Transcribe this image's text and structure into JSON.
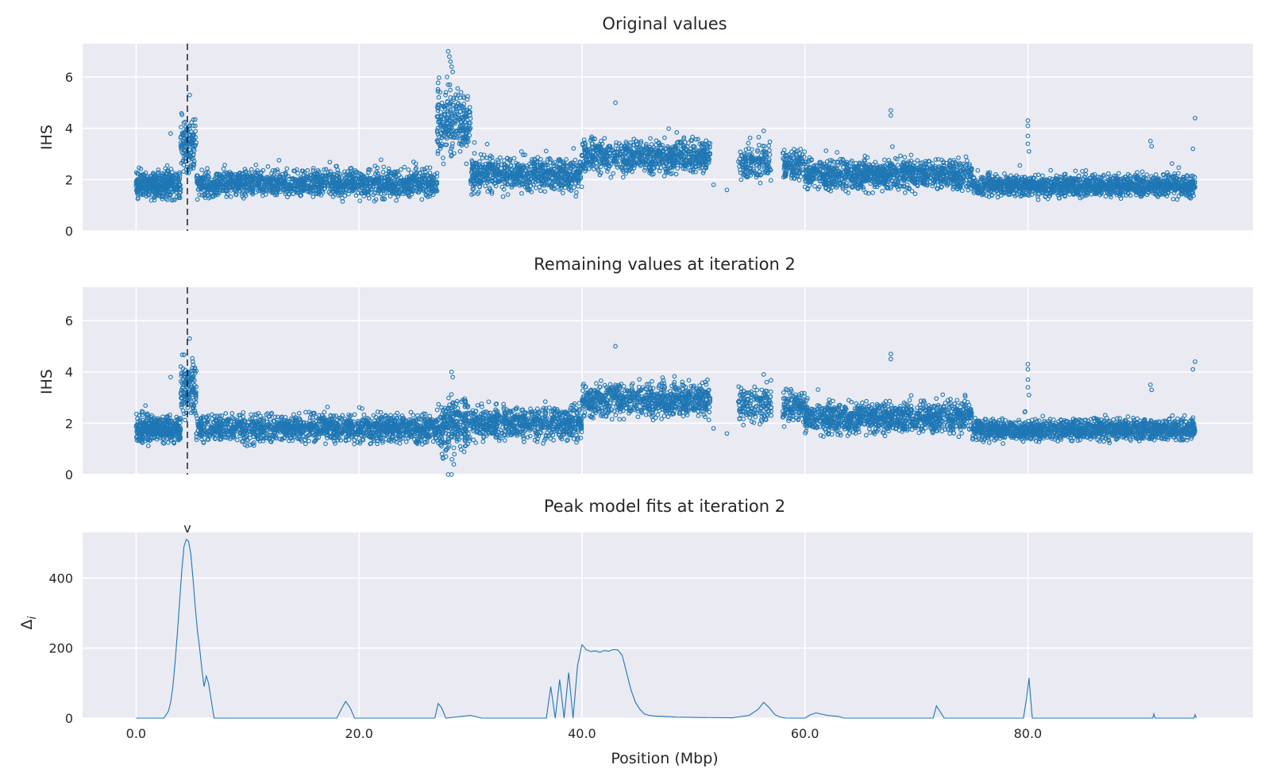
{
  "chart_data": [
    {
      "type": "scatter",
      "title": "Original values",
      "xlabel": "",
      "ylabel": "IHS",
      "xlim": [
        -4.8,
        100.2
      ],
      "ylim": [
        0,
        7.3
      ],
      "yticks": [
        0,
        2,
        4,
        6
      ],
      "xticks": [
        0,
        20,
        40,
        60,
        80
      ],
      "grid": true,
      "marker_line_x": 4.6,
      "segments": [
        {
          "x_start": 0.0,
          "x_end": 4.0,
          "base": 1.8,
          "spread": 0.45,
          "n": 420
        },
        {
          "x_start": 4.0,
          "x_end": 5.4,
          "base": 3.3,
          "spread": 0.9,
          "n": 140
        },
        {
          "x_start": 5.4,
          "x_end": 27.0,
          "base": 1.85,
          "spread": 0.45,
          "n": 1500
        },
        {
          "x_start": 27.0,
          "x_end": 30.0,
          "base": 4.2,
          "spread": 1.1,
          "n": 260
        },
        {
          "x_start": 30.0,
          "x_end": 40.0,
          "base": 2.2,
          "spread": 0.55,
          "n": 700
        },
        {
          "x_start": 40.0,
          "x_end": 51.5,
          "base": 2.9,
          "spread": 0.55,
          "n": 800
        },
        {
          "x_start": 54.0,
          "x_end": 57.0,
          "base": 2.7,
          "spread": 0.6,
          "n": 160
        },
        {
          "x_start": 58.0,
          "x_end": 60.0,
          "base": 2.6,
          "spread": 0.5,
          "n": 120
        },
        {
          "x_start": 60.0,
          "x_end": 75.0,
          "base": 2.2,
          "spread": 0.5,
          "n": 1100
        },
        {
          "x_start": 75.0,
          "x_end": 95.0,
          "base": 1.75,
          "spread": 0.35,
          "n": 1500
        }
      ],
      "outliers": [
        {
          "x": 3.1,
          "y": 3.8
        },
        {
          "x": 4.8,
          "y": 5.3
        },
        {
          "x": 28.0,
          "y": 7.0
        },
        {
          "x": 28.1,
          "y": 6.8
        },
        {
          "x": 28.2,
          "y": 6.6
        },
        {
          "x": 28.3,
          "y": 6.4
        },
        {
          "x": 28.4,
          "y": 6.2
        },
        {
          "x": 27.9,
          "y": 6.0
        },
        {
          "x": 28.0,
          "y": 5.7
        },
        {
          "x": 27.8,
          "y": 5.4
        },
        {
          "x": 28.2,
          "y": 5.2
        },
        {
          "x": 28.5,
          "y": 4.9
        },
        {
          "x": 43.0,
          "y": 5.0
        },
        {
          "x": 67.7,
          "y": 4.7
        },
        {
          "x": 67.7,
          "y": 4.5
        },
        {
          "x": 80.0,
          "y": 4.3
        },
        {
          "x": 80.0,
          "y": 4.1
        },
        {
          "x": 80.0,
          "y": 3.7
        },
        {
          "x": 80.0,
          "y": 3.4
        },
        {
          "x": 80.1,
          "y": 3.1
        },
        {
          "x": 95.0,
          "y": 4.4
        },
        {
          "x": 94.8,
          "y": 3.2
        },
        {
          "x": 53.0,
          "y": 1.6
        },
        {
          "x": 51.8,
          "y": 1.8
        },
        {
          "x": 91.0,
          "y": 3.5
        },
        {
          "x": 91.1,
          "y": 3.3
        },
        {
          "x": 56.3,
          "y": 3.9
        }
      ]
    },
    {
      "type": "scatter",
      "title": "Remaining values at iteration 2",
      "xlabel": "",
      "ylabel": "IHS",
      "xlim": [
        -4.8,
        100.2
      ],
      "ylim": [
        0,
        7.3
      ],
      "yticks": [
        0,
        2,
        4,
        6
      ],
      "xticks": [
        0,
        20,
        40,
        60,
        80
      ],
      "grid": true,
      "marker_line_x": 4.6,
      "segments": [
        {
          "x_start": 0.0,
          "x_end": 4.0,
          "base": 1.8,
          "spread": 0.45,
          "n": 420
        },
        {
          "x_start": 4.0,
          "x_end": 5.4,
          "base": 3.3,
          "spread": 0.9,
          "n": 140
        },
        {
          "x_start": 5.4,
          "x_end": 27.0,
          "base": 1.8,
          "spread": 0.45,
          "n": 1500
        },
        {
          "x_start": 27.0,
          "x_end": 30.0,
          "base": 1.9,
          "spread": 0.9,
          "n": 260
        },
        {
          "x_start": 30.0,
          "x_end": 40.0,
          "base": 2.0,
          "spread": 0.55,
          "n": 700
        },
        {
          "x_start": 40.0,
          "x_end": 51.5,
          "base": 2.9,
          "spread": 0.55,
          "n": 800
        },
        {
          "x_start": 54.0,
          "x_end": 57.0,
          "base": 2.7,
          "spread": 0.6,
          "n": 160
        },
        {
          "x_start": 58.0,
          "x_end": 60.0,
          "base": 2.6,
          "spread": 0.5,
          "n": 120
        },
        {
          "x_start": 60.0,
          "x_end": 75.0,
          "base": 2.2,
          "spread": 0.5,
          "n": 1100
        },
        {
          "x_start": 75.0,
          "x_end": 95.0,
          "base": 1.75,
          "spread": 0.35,
          "n": 1500
        }
      ],
      "outliers": [
        {
          "x": 3.1,
          "y": 3.8
        },
        {
          "x": 4.8,
          "y": 5.3
        },
        {
          "x": 28.3,
          "y": 4.0
        },
        {
          "x": 28.4,
          "y": 3.8
        },
        {
          "x": 28.0,
          "y": 0.0
        },
        {
          "x": 28.3,
          "y": 0.0
        },
        {
          "x": 27.8,
          "y": 0.7
        },
        {
          "x": 28.5,
          "y": 0.4
        },
        {
          "x": 43.0,
          "y": 5.0
        },
        {
          "x": 67.7,
          "y": 4.7
        },
        {
          "x": 67.7,
          "y": 4.5
        },
        {
          "x": 80.0,
          "y": 4.3
        },
        {
          "x": 80.0,
          "y": 4.1
        },
        {
          "x": 80.0,
          "y": 3.7
        },
        {
          "x": 80.0,
          "y": 3.4
        },
        {
          "x": 80.1,
          "y": 3.1
        },
        {
          "x": 95.0,
          "y": 4.4
        },
        {
          "x": 94.8,
          "y": 4.1
        },
        {
          "x": 53.0,
          "y": 1.6
        },
        {
          "x": 51.8,
          "y": 1.8
        },
        {
          "x": 91.0,
          "y": 3.5
        },
        {
          "x": 91.1,
          "y": 3.3
        },
        {
          "x": 56.3,
          "y": 3.9
        }
      ]
    },
    {
      "type": "line",
      "title": "Peak model fits at iteration 2",
      "xlabel": "Position (Mbp)",
      "ylabel": "Δ_i",
      "xlim": [
        -4.8,
        100.2
      ],
      "ylim": [
        0,
        530
      ],
      "yticks": [
        0,
        200,
        400
      ],
      "xticks": [
        0,
        20,
        40,
        60,
        80
      ],
      "xtick_labels": [
        "0.0",
        "20.0",
        "40.0",
        "60.0",
        "80.0"
      ],
      "grid": true,
      "peak_marker": {
        "x": 4.6,
        "label": "v"
      },
      "x": [
        0.0,
        2.5,
        2.9,
        3.1,
        3.3,
        3.5,
        3.7,
        3.9,
        4.1,
        4.3,
        4.5,
        4.7,
        4.9,
        5.1,
        5.3,
        5.5,
        5.7,
        5.9,
        6.1,
        6.3,
        6.5,
        6.7,
        7.0,
        18.0,
        18.4,
        18.8,
        19.2,
        19.6,
        26.8,
        27.1,
        27.4,
        27.8,
        30.0,
        31.0,
        32.0,
        36.8,
        37.2,
        37.6,
        38.0,
        38.4,
        38.8,
        39.2,
        39.6,
        40.0,
        40.4,
        40.8,
        41.2,
        41.6,
        42.0,
        42.4,
        42.8,
        43.2,
        43.6,
        44.0,
        44.4,
        44.8,
        45.2,
        45.6,
        46.0,
        46.6,
        47.2,
        47.8,
        48.5,
        50.0,
        53.5,
        55.0,
        55.8,
        56.3,
        56.8,
        57.3,
        57.8,
        58.3,
        60.0,
        60.5,
        61.0,
        62.0,
        63.0,
        63.5,
        71.5,
        71.8,
        72.0,
        72.2,
        72.5,
        79.6,
        79.9,
        80.1,
        80.4,
        91.2,
        91.3,
        91.4,
        94.9,
        95.0,
        95.1
      ],
      "values": [
        0,
        0,
        20,
        45,
        90,
        160,
        240,
        330,
        420,
        490,
        510,
        505,
        470,
        400,
        320,
        250,
        200,
        140,
        90,
        120,
        100,
        60,
        0,
        0,
        25,
        48,
        30,
        0,
        0,
        42,
        30,
        0,
        8,
        0,
        0,
        0,
        90,
        0,
        110,
        0,
        130,
        0,
        150,
        210,
        195,
        190,
        192,
        188,
        193,
        191,
        196,
        195,
        180,
        130,
        80,
        45,
        25,
        12,
        8,
        6,
        5,
        4,
        3,
        2,
        1,
        8,
        25,
        45,
        30,
        10,
        3,
        0,
        0,
        10,
        15,
        8,
        5,
        0,
        0,
        35,
        25,
        15,
        0,
        0,
        60,
        115,
        0,
        0,
        12,
        0,
        0,
        10,
        0
      ]
    }
  ]
}
